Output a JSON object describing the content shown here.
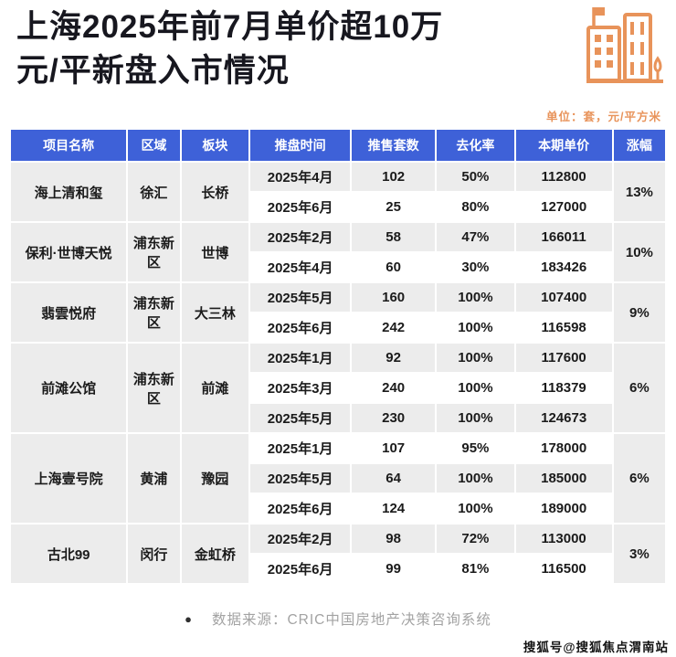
{
  "header": {
    "title_line1": "上海2025年前7月单价超10万",
    "title_line2": "元/平新盘入市情况",
    "unit_note": "单位：套，元/平方米"
  },
  "icons": {
    "building_icon": "building-icon",
    "accent_orange": "#E8935A"
  },
  "colors": {
    "header_bg": "#3E61D8",
    "row_gray": "#ececec",
    "row_white": "#ffffff",
    "title_text": "#17171f",
    "cell_text": "#1b1b1b",
    "source_text": "#a3a3a3"
  },
  "chart_data": {
    "type": "table",
    "title": "上海2025年前7月单价超10万元/平新盘入市情况",
    "unit_label": "单位：套，元/平方米",
    "columns": [
      "项目名称",
      "区域",
      "板块",
      "推盘时间",
      "推售套数",
      "去化率",
      "本期单价",
      "涨幅"
    ],
    "groups": [
      {
        "project": "海上清和玺",
        "district": "徐汇",
        "block": "长桥",
        "growth": "13%",
        "rows": [
          [
            "2025年4月",
            "102",
            "50%",
            "112800"
          ],
          [
            "2025年6月",
            "25",
            "80%",
            "127000"
          ]
        ]
      },
      {
        "project": "保利·世博天悦",
        "district": "浦东新区",
        "block": "世博",
        "growth": "10%",
        "rows": [
          [
            "2025年2月",
            "58",
            "47%",
            "166011"
          ],
          [
            "2025年4月",
            "60",
            "30%",
            "183426"
          ]
        ]
      },
      {
        "project": "翡雲悦府",
        "district": "浦东新区",
        "block": "大三林",
        "growth": "9%",
        "rows": [
          [
            "2025年5月",
            "160",
            "100%",
            "107400"
          ],
          [
            "2025年6月",
            "242",
            "100%",
            "116598"
          ]
        ]
      },
      {
        "project": "前滩公馆",
        "district": "浦东新区",
        "block": "前滩",
        "growth": "6%",
        "rows": [
          [
            "2025年1月",
            "92",
            "100%",
            "117600"
          ],
          [
            "2025年3月",
            "240",
            "100%",
            "118379"
          ],
          [
            "2025年5月",
            "230",
            "100%",
            "124673"
          ]
        ]
      },
      {
        "project": "上海壹号院",
        "district": "黄浦",
        "block": "豫园",
        "growth": "6%",
        "rows": [
          [
            "2025年1月",
            "107",
            "95%",
            "178000"
          ],
          [
            "2025年5月",
            "64",
            "100%",
            "185000"
          ],
          [
            "2025年6月",
            "124",
            "100%",
            "189000"
          ]
        ]
      },
      {
        "project": "古北99",
        "district": "闵行",
        "block": "金虹桥",
        "growth": "3%",
        "rows": [
          [
            "2025年2月",
            "98",
            "72%",
            "113000"
          ],
          [
            "2025年6月",
            "99",
            "81%",
            "116500"
          ]
        ]
      }
    ]
  },
  "footer": {
    "bullet": "●",
    "source": "数据来源：CRIC中国房地产决策咨询系统"
  },
  "watermark": "搜狐号@搜狐焦点渭南站"
}
